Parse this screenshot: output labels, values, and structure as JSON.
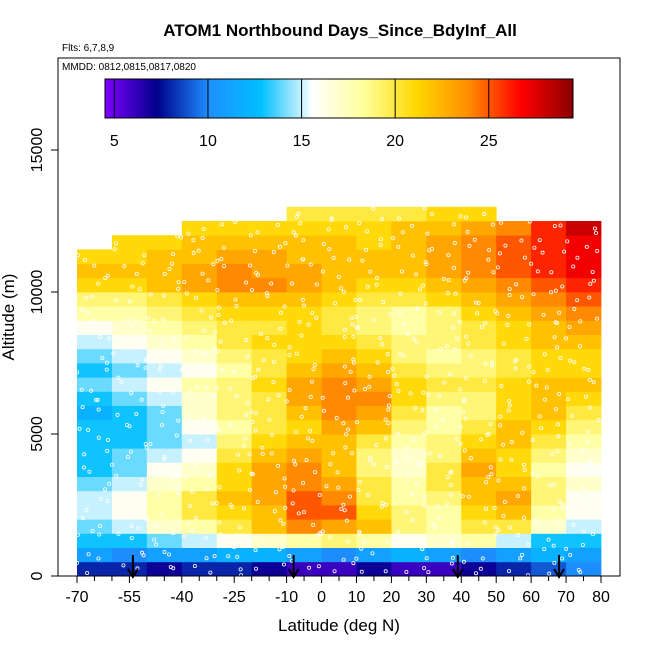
{
  "chart_data": {
    "type": "heatmap",
    "title": "ATOM1 Northbound Days_Since_BdyInf_All",
    "subtitle": "Flts: 6,7,8,9",
    "annotation": "MMDD: 0812,0815,0817,0820",
    "xlabel": "Latitude (deg N)",
    "ylabel": "Altitude (m)",
    "xlim": [
      -70,
      80
    ],
    "ylim": [
      0,
      17500
    ],
    "x_ticks": [
      -70,
      -55,
      -40,
      -25,
      -10,
      0,
      10,
      20,
      30,
      40,
      50,
      60,
      70,
      80
    ],
    "x_tick_labels": [
      "-70",
      "-55",
      "-40",
      "-25",
      "-10",
      "0",
      "10",
      "20",
      "30",
      "40",
      "50",
      "60",
      "70",
      "80"
    ],
    "x_minor_ticks": [
      -65,
      -60,
      -50,
      -45,
      -35,
      -30,
      -20,
      -15,
      -5,
      5,
      15,
      25,
      35,
      45,
      55,
      65,
      75
    ],
    "y_ticks": [
      0,
      5000,
      10000,
      15000
    ],
    "y_tick_labels": [
      "0",
      "5000",
      "10000",
      "15000"
    ],
    "colorbar": {
      "range": [
        4.5,
        29.5
      ],
      "ticks": [
        5,
        10,
        15,
        20,
        25
      ],
      "tick_labels": [
        "5",
        "10",
        "15",
        "20",
        "25"
      ],
      "colors": [
        "#7f00ff",
        "#00008b",
        "#1e90ff",
        "#00bfff",
        "#ffffff",
        "#ffff99",
        "#ffd700",
        "#ff8c00",
        "#ff0000",
        "#8b0000"
      ]
    },
    "flight_arrows_latitude": [
      -54,
      -8,
      39,
      68
    ],
    "altitude_bins": [
      0,
      500,
      1000,
      1500,
      2000,
      2500,
      3000,
      3500,
      4000,
      4500,
      5000,
      5500,
      6000,
      6500,
      7000,
      7500,
      8000,
      8500,
      9000,
      9500,
      10000,
      10500,
      11000,
      11500,
      12000,
      12500,
      13000
    ],
    "latitude_bins": [
      -70,
      -60,
      -50,
      -40,
      -30,
      -20,
      -10,
      0,
      10,
      20,
      30,
      40,
      50,
      60,
      70,
      80
    ],
    "values": [
      [
        8,
        8,
        7,
        8,
        8,
        7,
        6,
        6,
        7,
        6,
        6,
        7,
        8,
        9,
        10
      ],
      [
        11,
        10,
        11,
        11,
        12,
        12,
        11,
        10,
        11,
        12,
        11,
        10,
        11,
        12,
        11
      ],
      [
        13,
        13,
        14,
        15,
        16,
        17,
        18,
        19,
        18,
        16,
        17,
        18,
        15,
        13,
        13
      ],
      [
        14,
        15,
        17,
        18,
        20,
        22,
        24,
        23,
        22,
        19,
        18,
        20,
        20,
        17,
        15
      ],
      [
        15,
        16,
        18,
        20,
        21,
        22,
        25,
        25,
        21,
        19,
        18,
        21,
        22,
        18,
        16
      ],
      [
        15,
        16,
        18,
        20,
        22,
        23,
        25,
        24,
        20,
        18,
        19,
        22,
        23,
        19,
        16
      ],
      [
        14,
        15,
        17,
        18,
        21,
        23,
        24,
        23,
        20,
        18,
        20,
        22,
        22,
        19,
        17
      ],
      [
        13,
        14,
        16,
        17,
        21,
        23,
        24,
        22,
        19,
        17,
        20,
        23,
        21,
        18,
        16
      ],
      [
        13,
        14,
        15,
        16,
        20,
        22,
        23,
        22,
        19,
        17,
        19,
        22,
        21,
        19,
        17
      ],
      [
        13,
        13,
        14,
        15,
        19,
        21,
        22,
        22,
        20,
        18,
        19,
        21,
        22,
        20,
        18
      ],
      [
        13,
        13,
        14,
        16,
        18,
        20,
        21,
        23,
        22,
        19,
        18,
        20,
        22,
        21,
        19
      ],
      [
        12,
        13,
        14,
        17,
        19,
        20,
        22,
        24,
        23,
        20,
        18,
        19,
        21,
        22,
        20
      ],
      [
        13,
        14,
        15,
        17,
        19,
        20,
        23,
        24,
        24,
        21,
        19,
        19,
        21,
        22,
        21
      ],
      [
        14,
        15,
        16,
        18,
        19,
        21,
        23,
        24,
        23,
        21,
        20,
        20,
        21,
        22,
        22
      ],
      [
        13,
        14,
        15,
        16,
        18,
        20,
        22,
        23,
        22,
        20,
        19,
        19,
        20,
        21,
        21
      ],
      [
        14,
        15,
        16,
        17,
        19,
        20,
        21,
        22,
        21,
        19,
        18,
        19,
        20,
        21,
        21
      ],
      [
        15,
        16,
        17,
        18,
        20,
        21,
        21,
        21,
        20,
        19,
        19,
        20,
        21,
        22,
        22
      ],
      [
        16,
        17,
        18,
        19,
        20,
        20,
        21,
        20,
        19,
        18,
        19,
        20,
        21,
        22,
        23
      ],
      [
        18,
        18,
        19,
        20,
        21,
        21,
        21,
        20,
        19,
        18,
        19,
        21,
        22,
        23,
        24
      ],
      [
        19,
        19,
        20,
        21,
        22,
        22,
        22,
        21,
        20,
        20,
        21,
        22,
        23,
        24,
        25
      ],
      [
        21,
        21,
        22,
        23,
        24,
        24,
        23,
        22,
        21,
        21,
        22,
        23,
        24,
        25,
        26
      ],
      [
        22,
        22,
        22,
        23,
        24,
        23,
        23,
        22,
        22,
        22,
        23,
        24,
        25,
        26,
        27
      ],
      [
        21,
        21,
        22,
        22,
        23,
        23,
        22,
        22,
        22,
        22,
        23,
        24,
        25,
        26,
        27
      ],
      [
        null,
        21,
        21,
        22,
        22,
        22,
        22,
        22,
        21,
        22,
        23,
        24,
        25,
        26,
        27
      ],
      [
        null,
        null,
        null,
        21,
        21,
        21,
        21,
        21,
        21,
        22,
        22,
        23,
        24,
        26,
        28
      ],
      [
        null,
        null,
        null,
        null,
        null,
        null,
        20,
        20,
        20,
        20,
        21,
        21,
        null,
        null,
        null
      ]
    ]
  }
}
